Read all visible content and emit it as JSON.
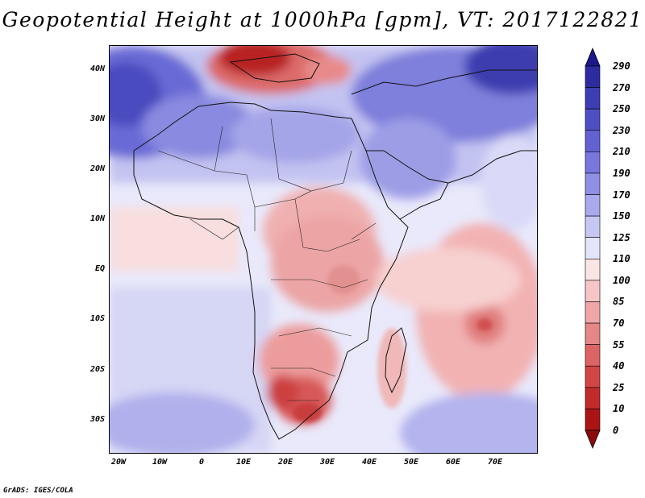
{
  "title": "Geopotential Height at 1000hPa [gpm], VT: 2017122821",
  "credit": "GrADS: IGES/COLA",
  "lat_labels": [
    "40N",
    "30N",
    "20N",
    "10N",
    "EQ",
    "10S",
    "20S",
    "30S"
  ],
  "lon_labels": [
    "20W",
    "10W",
    "0",
    "10E",
    "20E",
    "30E",
    "40E",
    "50E",
    "60E",
    "70E"
  ],
  "colorbar": {
    "levels": [
      "290",
      "270",
      "250",
      "230",
      "210",
      "190",
      "170",
      "150",
      "125",
      "110",
      "100",
      "85",
      "70",
      "55",
      "40",
      "25",
      "10",
      "0"
    ],
    "colors": [
      "#1a1a8c",
      "#2c2ca0",
      "#3d3db4",
      "#4f4fc4",
      "#6262d2",
      "#7777dc",
      "#8f8fe4",
      "#a9a9ec",
      "#c7c7f4",
      "#e4e4fa",
      "#fbe4e4",
      "#f6c6c6",
      "#efa6a6",
      "#e68686",
      "#dc6464",
      "#d24646",
      "#c32a2a",
      "#aa1414",
      "#8c0a0a"
    ]
  }
}
